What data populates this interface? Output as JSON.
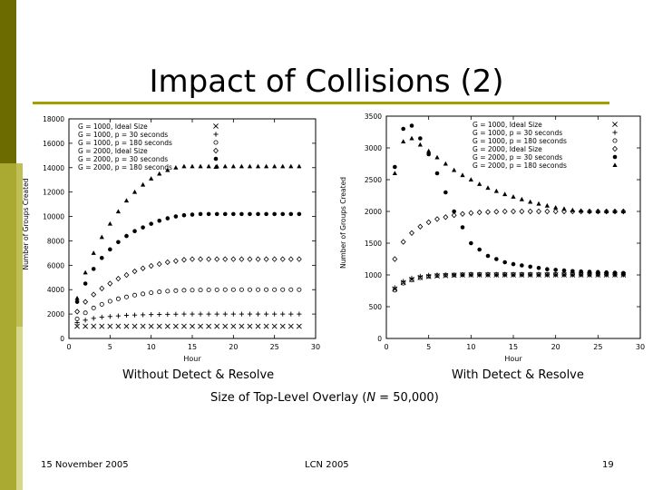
{
  "slide": {
    "title": "Impact of Collisions (2)",
    "caption_left": "Without Detect & Resolve",
    "caption_right": "With Detect & Resolve",
    "overlay_prefix": "Size of Top-Level Overlay (",
    "overlay_var": "N",
    "overlay_suffix": " = 50,000)",
    "footer_date": "15 November 2005",
    "footer_venue": "LCN 2005",
    "footer_page": "19",
    "accent_dark": "#6b6b00",
    "accent": "#a0a000"
  },
  "chart_data": [
    {
      "type": "scatter",
      "xlabel": "Hour",
      "ylabel": "Number of Groups Created",
      "xlim": [
        0,
        30
      ],
      "ylim": [
        0,
        18000
      ],
      "xticks": [
        "0",
        "5",
        "10",
        "15",
        "20",
        "25",
        "30"
      ],
      "yticks": [
        "0",
        "2000",
        "4000",
        "6000",
        "8000",
        "10000",
        "12000",
        "14000",
        "16000",
        "18000"
      ],
      "legend_position": "top-left",
      "series": [
        {
          "name": "G = 1000, Ideal Size",
          "marker": "x",
          "x": [
            1,
            2,
            3,
            4,
            5,
            6,
            7,
            8,
            9,
            10,
            11,
            12,
            13,
            14,
            15,
            16,
            17,
            18,
            19,
            20,
            21,
            22,
            23,
            24,
            25,
            26,
            27,
            28
          ],
          "y": [
            1000,
            1000,
            1000,
            1000,
            1000,
            1000,
            1000,
            1000,
            1000,
            1000,
            1000,
            1000,
            1000,
            1000,
            1000,
            1000,
            1000,
            1000,
            1000,
            1000,
            1000,
            1000,
            1000,
            1000,
            1000,
            1000,
            1000,
            1000
          ]
        },
        {
          "name": "G = 1000, p = 30 seconds",
          "marker": "+",
          "x": [
            1,
            2,
            3,
            4,
            5,
            6,
            7,
            8,
            9,
            10,
            11,
            12,
            13,
            14,
            15,
            16,
            17,
            18,
            19,
            20,
            21,
            22,
            23,
            24,
            25,
            26,
            27,
            28
          ],
          "y": [
            1300,
            1500,
            1650,
            1750,
            1800,
            1850,
            1900,
            1920,
            1940,
            1960,
            1970,
            1980,
            1990,
            2000,
            2000,
            2000,
            2000,
            2000,
            2000,
            2000,
            2000,
            2000,
            2000,
            2000,
            2000,
            2000,
            2000,
            2000
          ]
        },
        {
          "name": "G = 1000, p = 180 seconds",
          "marker": "o",
          "x": [
            1,
            2,
            3,
            4,
            5,
            6,
            7,
            8,
            9,
            10,
            11,
            12,
            13,
            14,
            15,
            16,
            17,
            18,
            19,
            20,
            21,
            22,
            23,
            24,
            25,
            26,
            27,
            28
          ],
          "y": [
            1600,
            2100,
            2500,
            2800,
            3050,
            3250,
            3400,
            3550,
            3650,
            3750,
            3820,
            3880,
            3920,
            3950,
            3960,
            3970,
            3980,
            3990,
            4000,
            4000,
            4000,
            4000,
            4000,
            4000,
            4000,
            4000,
            4000,
            4000
          ]
        },
        {
          "name": "G = 2000, Ideal Size",
          "marker": "diamond",
          "x": [
            1,
            2,
            3,
            4,
            5,
            6,
            7,
            8,
            9,
            10,
            11,
            12,
            13,
            14,
            15,
            16,
            17,
            18,
            19,
            20,
            21,
            22,
            23,
            24,
            25,
            26,
            27,
            28
          ],
          "y": [
            2200,
            3000,
            3600,
            4100,
            4500,
            4900,
            5200,
            5500,
            5750,
            5950,
            6100,
            6250,
            6350,
            6450,
            6500,
            6500,
            6500,
            6500,
            6500,
            6500,
            6500,
            6500,
            6500,
            6500,
            6500,
            6500,
            6500,
            6500
          ]
        },
        {
          "name": "G = 2000, p = 30 seconds",
          "marker": "dot",
          "x": [
            1,
            2,
            3,
            4,
            5,
            6,
            7,
            8,
            9,
            10,
            11,
            12,
            13,
            14,
            15,
            16,
            17,
            18,
            19,
            20,
            21,
            22,
            23,
            24,
            25,
            26,
            27,
            28
          ],
          "y": [
            3000,
            4500,
            5700,
            6600,
            7300,
            7900,
            8400,
            8800,
            9100,
            9400,
            9650,
            9850,
            10000,
            10100,
            10150,
            10200,
            10200,
            10200,
            10200,
            10200,
            10200,
            10200,
            10200,
            10200,
            10200,
            10200,
            10200,
            10200
          ]
        },
        {
          "name": "G = 2000, p = 180 seconds",
          "marker": "triangle",
          "x": [
            1,
            2,
            3,
            4,
            5,
            6,
            7,
            8,
            9,
            10,
            11,
            12,
            13,
            14,
            15,
            16,
            17,
            18,
            19,
            20,
            21,
            22,
            23,
            24,
            25,
            26,
            27,
            28
          ],
          "y": [
            3300,
            5400,
            7000,
            8300,
            9400,
            10400,
            11300,
            12000,
            12600,
            13100,
            13500,
            13800,
            14000,
            14100,
            14100,
            14100,
            14100,
            14100,
            14100,
            14100,
            14100,
            14100,
            14100,
            14100,
            14100,
            14100,
            14100,
            14100
          ]
        }
      ]
    },
    {
      "type": "scatter",
      "xlabel": "Hour",
      "ylabel": "Number of Groups Created",
      "xlim": [
        0,
        30
      ],
      "ylim": [
        0,
        3500
      ],
      "xticks": [
        "0",
        "5",
        "10",
        "15",
        "20",
        "25",
        "30"
      ],
      "yticks": [
        "0",
        "500",
        "1000",
        "1500",
        "2000",
        "2500",
        "3000",
        "3500"
      ],
      "legend_position": "top-right",
      "series": [
        {
          "name": "G = 1000, Ideal Size",
          "marker": "x",
          "x": [
            1,
            2,
            3,
            4,
            5,
            6,
            7,
            8,
            9,
            10,
            11,
            12,
            13,
            14,
            15,
            16,
            17,
            18,
            19,
            20,
            21,
            22,
            23,
            24,
            25,
            26,
            27,
            28
          ],
          "y": [
            780,
            880,
            930,
            960,
            975,
            985,
            990,
            995,
            1000,
            1000,
            1000,
            1000,
            1000,
            1000,
            1000,
            1000,
            1000,
            1000,
            1000,
            1000,
            1000,
            1000,
            1000,
            1000,
            1000,
            1000,
            1000,
            1000
          ]
        },
        {
          "name": "G = 1000, p = 30 seconds",
          "marker": "+",
          "x": [
            1,
            2,
            3,
            4,
            5,
            6,
            7,
            8,
            9,
            10,
            11,
            12,
            13,
            14,
            15,
            16,
            17,
            18,
            19,
            20,
            21,
            22,
            23,
            24,
            25,
            26,
            27,
            28
          ],
          "y": [
            800,
            900,
            950,
            980,
            995,
            1000,
            1000,
            1000,
            1000,
            1000,
            1000,
            1000,
            1000,
            1000,
            1000,
            1000,
            1000,
            1000,
            1000,
            1000,
            1000,
            1000,
            1000,
            1000,
            1000,
            1000,
            1000,
            1000
          ]
        },
        {
          "name": "G = 1000, p = 180 seconds",
          "marker": "o",
          "x": [
            1,
            2,
            3,
            4,
            5,
            6,
            7,
            8,
            9,
            10,
            11,
            12,
            13,
            14,
            15,
            16,
            17,
            18,
            19,
            20,
            21,
            22,
            23,
            24,
            25,
            26,
            27,
            28
          ],
          "y": [
            760,
            870,
            920,
            955,
            975,
            990,
            998,
            1000,
            1005,
            1010,
            1010,
            1010,
            1010,
            1010,
            1010,
            1010,
            1010,
            1010,
            1010,
            1010,
            1010,
            1010,
            1010,
            1010,
            1010,
            1010,
            1010,
            1010
          ]
        },
        {
          "name": "G = 2000, Ideal Size",
          "marker": "diamond",
          "x": [
            1,
            2,
            3,
            4,
            5,
            6,
            7,
            8,
            9,
            10,
            11,
            12,
            13,
            14,
            15,
            16,
            17,
            18,
            19,
            20,
            21,
            22,
            23,
            24,
            25,
            26,
            27,
            28
          ],
          "y": [
            1250,
            1520,
            1660,
            1760,
            1830,
            1880,
            1910,
            1940,
            1960,
            1975,
            1985,
            1990,
            1995,
            2000,
            2000,
            2000,
            2000,
            2000,
            2000,
            2000,
            2000,
            2000,
            2000,
            2000,
            2000,
            2000,
            2000,
            2000
          ]
        },
        {
          "name": "G = 2000, p = 30 seconds",
          "marker": "dot",
          "x": [
            1,
            2,
            3,
            4,
            5,
            6,
            7,
            8,
            9,
            10,
            11,
            12,
            13,
            14,
            15,
            16,
            17,
            18,
            19,
            20,
            21,
            22,
            23,
            24,
            25,
            26,
            27,
            28
          ],
          "y": [
            2700,
            3300,
            3350,
            3150,
            2900,
            2600,
            2300,
            2000,
            1750,
            1500,
            1400,
            1300,
            1250,
            1200,
            1170,
            1150,
            1130,
            1110,
            1090,
            1080,
            1070,
            1060,
            1055,
            1050,
            1045,
            1040,
            1035,
            1030
          ]
        },
        {
          "name": "G = 2000, p = 180 seconds",
          "marker": "triangle",
          "x": [
            1,
            2,
            3,
            4,
            5,
            6,
            7,
            8,
            9,
            10,
            11,
            12,
            13,
            14,
            15,
            16,
            17,
            18,
            19,
            20,
            21,
            22,
            23,
            24,
            25,
            26,
            27,
            28
          ],
          "y": [
            2600,
            3100,
            3150,
            3050,
            2950,
            2850,
            2750,
            2650,
            2570,
            2500,
            2430,
            2370,
            2320,
            2270,
            2230,
            2190,
            2150,
            2120,
            2090,
            2060,
            2040,
            2020,
            2010,
            2000,
            2000,
            2000,
            2000,
            2000
          ]
        }
      ]
    }
  ]
}
